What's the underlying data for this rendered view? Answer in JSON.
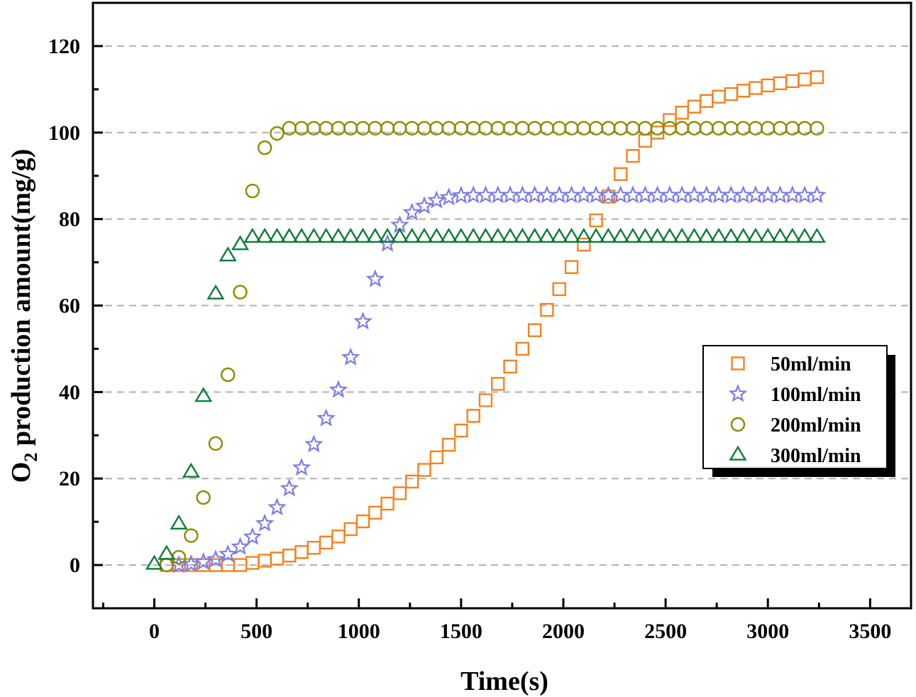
{
  "chart_data": {
    "type": "scatter",
    "title": "",
    "xlabel": "Time(s)",
    "ylabel_main": "O",
    "ylabel_sub": "2",
    "ylabel_rest": " production amount(mg/g)",
    "xlim": [
      -300,
      3700
    ],
    "ylim": [
      -10,
      130
    ],
    "xticks": [
      0,
      500,
      1000,
      1500,
      2000,
      2500,
      3000,
      3500
    ],
    "yticks": [
      0,
      20,
      40,
      60,
      80,
      100,
      120
    ],
    "grid": "horizontal dashed",
    "legend_position": "right",
    "series": [
      {
        "name": "50ml/min",
        "marker": "square",
        "color": "#f58220",
        "x_start": 60,
        "x_step": 60,
        "x_end": 3240,
        "y": [
          0,
          0,
          0,
          0,
          0,
          0,
          0,
          0.5,
          1,
          1.5,
          2.2,
          3,
          4,
          5.2,
          6.6,
          8.3,
          10.1,
          12.1,
          14.2,
          16.6,
          19.3,
          22,
          24.9,
          27.8,
          31.1,
          34.5,
          38.1,
          41.9,
          45.9,
          50,
          54.3,
          59,
          63.8,
          68.9,
          74.1,
          79.7,
          85.2,
          90.4,
          94.6,
          98.1,
          100,
          102.9,
          104.6,
          106,
          107.3,
          108.3,
          108.9,
          109.7,
          110.3,
          110.9,
          111.4,
          111.9,
          112.3,
          112.8
        ]
      },
      {
        "name": "100ml/min",
        "marker": "star",
        "color": "#7b7bea",
        "x_start": 120,
        "x_step": 60,
        "x_end": 3240,
        "y": [
          0,
          0.2,
          0.7,
          1.3,
          2.5,
          4.2,
          6.5,
          9.6,
          13.3,
          17.7,
          22.5,
          27.9,
          33.9,
          40.5,
          48,
          56.3,
          66.1,
          74.3,
          78.6,
          81.5,
          83,
          84.3,
          85,
          85.4,
          85.5,
          85.5,
          85.5,
          85.5,
          85.5,
          85.5,
          85.5,
          85.5,
          85.5,
          85.5,
          85.5,
          85.5,
          85.5,
          85.5,
          85.5,
          85.5,
          85.5,
          85.5,
          85.5,
          85.5,
          85.5,
          85.5,
          85.5,
          85.5,
          85.5,
          85.5,
          85.5,
          85.5,
          85.5
        ]
      },
      {
        "name": "200ml/min",
        "marker": "circle",
        "color": "#8b8b00",
        "x_start": 60,
        "x_step": 60,
        "x_end": 3240,
        "y": [
          0,
          1.8,
          6.8,
          15.6,
          28.1,
          44,
          63.1,
          86.5,
          96.5,
          99.8,
          101,
          101,
          101,
          101,
          101,
          101,
          101,
          101,
          101,
          101,
          101,
          101,
          101,
          101,
          101,
          101,
          101,
          101,
          101,
          101,
          101,
          101,
          101,
          101,
          101,
          101,
          101,
          101,
          101,
          101,
          101,
          101,
          101,
          101,
          101,
          101,
          101,
          101,
          101,
          101,
          101,
          101,
          101,
          101
        ]
      },
      {
        "name": "300ml/min",
        "marker": "triangle",
        "color": "#0f7b3a",
        "x_start": 0,
        "x_step": 60,
        "x_end": 3240,
        "y": [
          0.2,
          2.5,
          9.5,
          21.5,
          39,
          62.7,
          71.5,
          74.1,
          75.8,
          75.8,
          75.8,
          75.8,
          75.8,
          75.8,
          75.8,
          75.8,
          75.8,
          75.8,
          75.8,
          75.8,
          75.8,
          75.8,
          75.8,
          75.8,
          75.8,
          75.8,
          75.8,
          75.8,
          75.8,
          75.8,
          75.8,
          75.8,
          75.8,
          75.8,
          75.8,
          75.8,
          75.8,
          75.8,
          75.8,
          75.8,
          75.8,
          75.8,
          75.8,
          75.8,
          75.8,
          75.8,
          75.8,
          75.8,
          75.8,
          75.8,
          75.8,
          75.8,
          75.8,
          75.8,
          75.8
        ]
      }
    ]
  },
  "colors": {
    "frame": "#000000",
    "grid": "#b0b0b0",
    "background": "#ffffff"
  }
}
